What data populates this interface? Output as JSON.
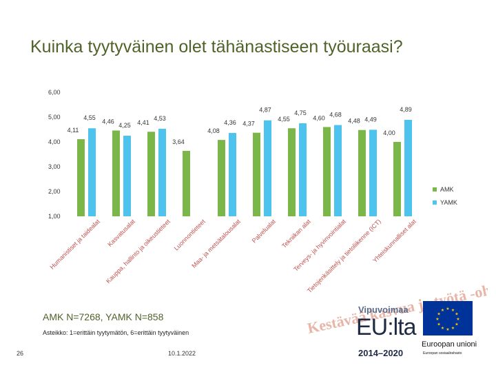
{
  "title": "Kuinka tyytyväinen olet tähänastiseen työuraasi?",
  "chart_data": {
    "type": "bar",
    "categories": [
      "Humanistiset ja taidealat",
      "Kasvatusalat",
      "Kauppa, hallinto ja oikeustieteet",
      "Luonnontieteet",
      "Maa- ja metsätalousalat",
      "Palvelualat",
      "Tekniikan alat",
      "Terveys- ja hyvinvointialat",
      "Tietojenkäsittely ja tietoliikenne (ICT)",
      "Yhteiskunnalliset alat"
    ],
    "series": [
      {
        "name": "AMK",
        "color": "#7ab648",
        "values": [
          4.11,
          4.46,
          4.41,
          3.64,
          4.08,
          4.37,
          4.55,
          4.6,
          4.48,
          4.0
        ]
      },
      {
        "name": "YAMK",
        "color": "#4dc3ee",
        "values": [
          4.55,
          4.25,
          4.53,
          null,
          4.36,
          4.87,
          4.75,
          4.68,
          4.49,
          4.89
        ]
      }
    ],
    "value_labels": {
      "AMK": [
        "4,11",
        "4,46",
        "4,41",
        "3,64",
        "4,08",
        "4,37",
        "4,55",
        "4,60",
        "4,48",
        "4,00"
      ],
      "YAMK": [
        "4,55",
        "4,25",
        "4,53",
        "",
        "4,36",
        "4,87",
        "4,75",
        "4,68",
        "4,49",
        "4,89"
      ]
    },
    "y_ticks": [
      "1,00",
      "2,00",
      "3,00",
      "4,00",
      "5,00",
      "6,00"
    ],
    "ylim": [
      1,
      6
    ],
    "legend": [
      "AMK",
      "YAMK"
    ],
    "legend_position": "right"
  },
  "notes": {
    "sample": "AMK N=7268, YAMK N=858",
    "scale": "Asteikko: 1=erittäin tyytymätön, 6=erittäin tyytyväinen"
  },
  "footer": {
    "page": "26",
    "date": "10.1.2022"
  },
  "branding": {
    "slogan": "Kestävää kasvua ja työtä -ohjelma",
    "vipuvoimaa": "Vipuvoimaa",
    "eu_text": "EU:lta",
    "eu_years": "2014–2020",
    "eu_name": "Euroopan unioni",
    "eu_sub": "Euroopan sosiaalirahasto"
  }
}
